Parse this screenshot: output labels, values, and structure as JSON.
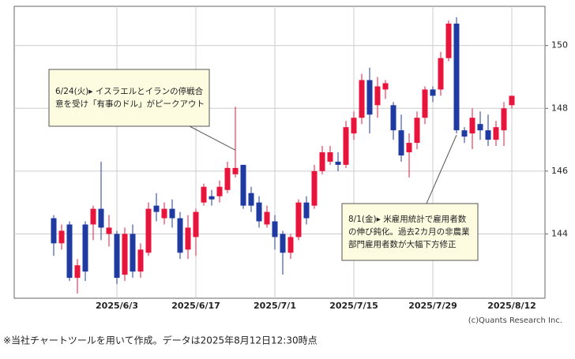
{
  "chart_data": {
    "type": "candlestick",
    "categories": [
      null,
      null,
      null,
      null,
      null,
      null,
      null,
      null,
      "2025/6/3",
      null,
      null,
      null,
      null,
      null,
      null,
      null,
      null,
      null,
      "2025/6/17",
      null,
      null,
      null,
      null,
      null,
      null,
      null,
      null,
      null,
      "2025/7/1",
      null,
      null,
      null,
      null,
      null,
      null,
      null,
      null,
      null,
      "2025/7/15",
      null,
      null,
      null,
      null,
      null,
      null,
      null,
      null,
      null,
      "2025/7/29",
      null,
      null,
      null,
      null,
      null,
      null,
      null,
      null,
      null,
      "2025/8/12"
    ],
    "open": [
      144.5,
      143.7,
      144.3,
      142.6,
      144.3,
      144.3,
      144.8,
      144.0,
      144.0,
      142.7,
      144.0,
      142.8,
      143.4,
      144.9,
      144.5,
      144.8,
      144.5,
      143.5,
      143.9,
      145.0,
      145.2,
      145.2,
      145.4,
      145.9,
      146.2,
      145.3,
      145.0,
      144.3,
      144.4,
      144.0,
      143.4,
      143.9,
      145.0,
      144.9,
      146.0,
      146.3,
      146.3,
      146.2,
      147.2,
      147.7,
      148.9,
      148.1,
      148.6,
      148.1,
      147.3,
      146.6,
      146.9,
      147.7,
      148.6,
      148.6,
      149.6,
      150.7,
      147.3,
      147.2,
      147.5,
      147.3,
      147.0,
      147.3,
      148.1
    ],
    "high": [
      144.6,
      144.3,
      144.4,
      143.2,
      144.4,
      144.9,
      146.3,
      144.6,
      144.1,
      144.2,
      144.3,
      143.7,
      145.0,
      145.3,
      145.0,
      145.1,
      144.7,
      144.6,
      144.8,
      145.6,
      145.4,
      145.7,
      146.3,
      148.05,
      146.2,
      145.5,
      145.2,
      144.9,
      144.6,
      144.1,
      144.0,
      145.1,
      145.2,
      146.2,
      146.8,
      146.8,
      146.6,
      147.6,
      147.9,
      149.1,
      149.3,
      149.0,
      148.9,
      148.2,
      147.8,
      147.2,
      147.9,
      148.7,
      148.7,
      149.8,
      150.8,
      150.9,
      147.4,
      148.0,
      147.9,
      147.8,
      147.6,
      148.2,
      148.4
    ],
    "low": [
      143.3,
      143.5,
      142.5,
      142.1,
      142.5,
      143.8,
      143.8,
      143.6,
      142.4,
      142.5,
      142.6,
      142.6,
      143.3,
      144.4,
      144.3,
      144.2,
      143.2,
      143.2,
      143.3,
      144.9,
      144.9,
      145.0,
      145.3,
      145.8,
      144.8,
      144.7,
      144.2,
      144.2,
      143.5,
      142.7,
      143.2,
      143.8,
      144.3,
      144.8,
      145.9,
      146.2,
      146.0,
      146.1,
      147.0,
      147.5,
      147.2,
      147.7,
      148.3,
      147.0,
      146.3,
      145.8,
      146.7,
      147.5,
      148.2,
      148.4,
      149.5,
      147.2,
      146.9,
      146.7,
      147.0,
      146.8,
      146.8,
      146.8,
      148.0
    ],
    "close": [
      143.7,
      144.1,
      142.6,
      143.0,
      142.8,
      144.8,
      144.2,
      144.2,
      142.6,
      144.0,
      142.8,
      143.5,
      144.8,
      144.7,
      144.8,
      144.5,
      143.4,
      144.2,
      144.7,
      145.5,
      145.1,
      145.5,
      146.1,
      146.1,
      144.9,
      144.9,
      144.4,
      144.7,
      143.9,
      143.4,
      143.9,
      145.0,
      144.5,
      146.0,
      146.6,
      146.6,
      146.2,
      147.4,
      147.7,
      148.9,
      147.8,
      148.7,
      148.8,
      147.3,
      146.5,
      146.9,
      147.7,
      148.6,
      148.4,
      149.6,
      150.7,
      147.3,
      147.1,
      147.7,
      147.3,
      147.0,
      147.4,
      148.0,
      148.4
    ],
    "up_color": "#e8143c",
    "down_color": "#1f3aa0",
    "ylim": [
      141.95,
      151.25
    ],
    "yticks": [
      144,
      146,
      148,
      150
    ],
    "grid": true,
    "annotations": [
      {
        "lines": [
          "6/24(火)▸ イスラエルとイランの停戦合",
          "意を受け「有事のドル」がピークアウト"
        ]
      },
      {
        "lines": [
          "8/1(金)▸ 米雇用統計で雇用者数",
          "の伸び鈍化。過去2カ月の非農業",
          "部門雇用者数が大幅下方修正"
        ]
      }
    ],
    "credit": "(c)Quants Research Inc.",
    "footnote": "※当社チャートツールを用いて作成。データは2025年8月12日12:30時点"
  }
}
